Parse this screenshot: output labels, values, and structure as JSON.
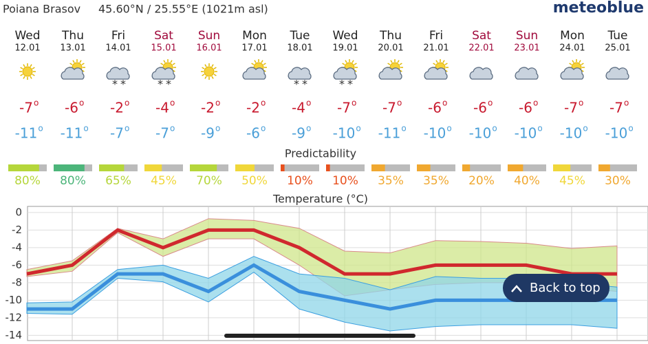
{
  "header": {
    "location": "Poiana Brasov",
    "coordinates": "45.60°N / 25.55°E (1021m asl)",
    "logo": "meteoblue"
  },
  "degree_mark": "o",
  "days": [
    {
      "day": "Wed",
      "date": "12.01",
      "color": "#222222",
      "icon": [
        "sun"
      ],
      "max": -7,
      "min": -11,
      "predictability": 80,
      "predictability_label": "80%",
      "predictability_color": "#b5d63b"
    },
    {
      "day": "Thu",
      "date": "13.01",
      "color": "#222222",
      "icon": [
        "sun",
        "cloud"
      ],
      "max": -6,
      "min": -11,
      "predictability": 80,
      "predictability_label": "80%",
      "predictability_color": "#4cb57a"
    },
    {
      "day": "Fri",
      "date": "14.01",
      "color": "#222222",
      "icon": [
        "cloud",
        "snow"
      ],
      "max": -2,
      "min": -7,
      "predictability": 65,
      "predictability_label": "65%",
      "predictability_color": "#b5d63b"
    },
    {
      "day": "Sat",
      "date": "15.01",
      "color": "#a00a3c",
      "icon": [
        "sun",
        "cloud",
        "snow"
      ],
      "max": -4,
      "min": -7,
      "predictability": 45,
      "predictability_label": "45%",
      "predictability_color": "#f0d73a"
    },
    {
      "day": "Sun",
      "date": "16.01",
      "color": "#a00a3c",
      "icon": [
        "sun"
      ],
      "max": -2,
      "min": -9,
      "predictability": 70,
      "predictability_label": "70%",
      "predictability_color": "#b5d63b"
    },
    {
      "day": "Mon",
      "date": "17.01",
      "color": "#222222",
      "icon": [
        "sun",
        "cloud"
      ],
      "max": -2,
      "min": -6,
      "predictability": 50,
      "predictability_label": "50%",
      "predictability_color": "#f0d73a"
    },
    {
      "day": "Tue",
      "date": "18.01",
      "color": "#222222",
      "icon": [
        "cloud",
        "snow"
      ],
      "max": -4,
      "min": -9,
      "predictability": 10,
      "predictability_label": "10%",
      "predictability_color": "#e8501d"
    },
    {
      "day": "Wed",
      "date": "19.01",
      "color": "#222222",
      "icon": [
        "sun",
        "cloud",
        "snow"
      ],
      "max": -7,
      "min": -10,
      "predictability": 10,
      "predictability_label": "10%",
      "predictability_color": "#e8501d"
    },
    {
      "day": "Thu",
      "date": "20.01",
      "color": "#222222",
      "icon": [
        "sun",
        "cloud"
      ],
      "max": -7,
      "min": -11,
      "predictability": 35,
      "predictability_label": "35%",
      "predictability_color": "#f0a830"
    },
    {
      "day": "Fri",
      "date": "21.01",
      "color": "#222222",
      "icon": [
        "sun",
        "cloud"
      ],
      "max": -6,
      "min": -10,
      "predictability": 35,
      "predictability_label": "35%",
      "predictability_color": "#f0a830"
    },
    {
      "day": "Sat",
      "date": "22.01",
      "color": "#a00a3c",
      "icon": [
        "cloud"
      ],
      "max": -6,
      "min": -10,
      "predictability": 20,
      "predictability_label": "20%",
      "predictability_color": "#f0a830"
    },
    {
      "day": "Sun",
      "date": "23.01",
      "color": "#a00a3c",
      "icon": [
        "cloud"
      ],
      "max": -6,
      "min": -10,
      "predictability": 40,
      "predictability_label": "40%",
      "predictability_color": "#f0a830"
    },
    {
      "day": "Mon",
      "date": "24.01",
      "color": "#222222",
      "icon": [
        "sun",
        "cloud"
      ],
      "max": -7,
      "min": -10,
      "predictability": 45,
      "predictability_label": "45%",
      "predictability_color": "#f0d73a"
    },
    {
      "day": "Tue",
      "date": "25.01",
      "color": "#222222",
      "icon": [
        "cloud"
      ],
      "max": -7,
      "min": -10,
      "predictability": 30,
      "predictability_label": "30%",
      "predictability_color": "#f0a830"
    }
  ],
  "predictability_title": "Predictability",
  "chart": {
    "title": "Temperature (°C)",
    "ylim": [
      -14.6,
      0.7
    ],
    "yticks": [
      0,
      -2,
      -4,
      -6,
      -8,
      -10,
      -12,
      -14
    ],
    "bands": [
      {
        "color": "#cfe58a",
        "stroke": "#d98a8a",
        "low": [
          -7.3,
          -6.7,
          -2.3,
          -5,
          -3,
          -3,
          -6,
          -9.5,
          -8.8,
          -8.2,
          -8,
          -8,
          -8.5,
          -9
        ],
        "high": [
          -6.5,
          -5.5,
          -1.8,
          -3,
          -0.7,
          -0.9,
          -1.8,
          -4.4,
          -4.6,
          -3.2,
          -3.3,
          -3.5,
          -4.1,
          -3.8
        ]
      },
      {
        "color": "#8fd6e8",
        "stroke": "#3a9ee0",
        "low": [
          -11.5,
          -11.6,
          -7.5,
          -7.9,
          -10.2,
          -6.8,
          -11,
          -12.5,
          -13.5,
          -13,
          -12.8,
          -12.8,
          -12.8,
          -13.2
        ],
        "high": [
          -10.3,
          -10.2,
          -6.5,
          -6,
          -7.5,
          -5,
          -7,
          -7.5,
          -8.8,
          -7.3,
          -7.5,
          -7.5,
          -8,
          -8.5
        ]
      }
    ],
    "series": [
      {
        "color": "#d0282e",
        "values": [
          -7,
          -6,
          -2,
          -4,
          -2,
          -2,
          -4,
          -7,
          -7,
          -6,
          -6,
          -6,
          -7,
          -7
        ]
      },
      {
        "color": "#3a8fdc",
        "values": [
          -11,
          -11,
          -7,
          -7,
          -9,
          -6,
          -9,
          -10,
          -11,
          -10,
          -10,
          -10,
          -10,
          -10
        ]
      }
    ]
  },
  "back_to_top": "Back to top"
}
